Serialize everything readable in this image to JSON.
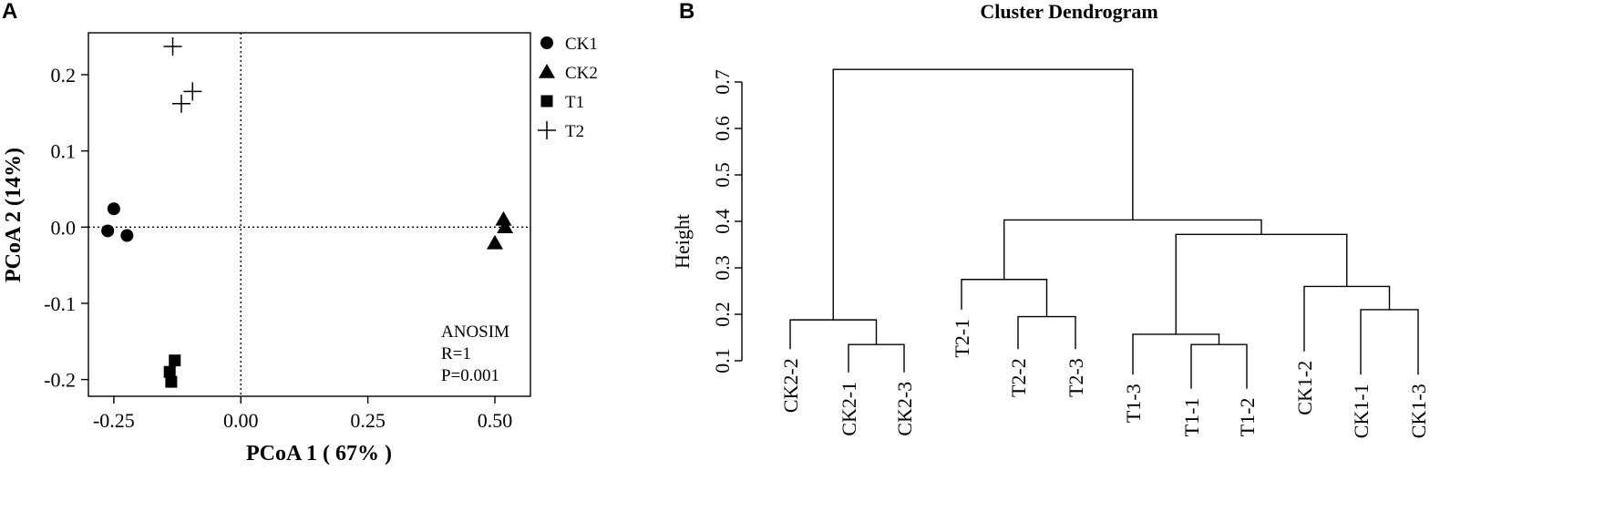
{
  "chart_data": [
    {
      "type": "scatter",
      "panel": "A",
      "title": "",
      "xlabel": "PCoA 1 ( 67% )",
      "ylabel": "PCoA 2 (14%)",
      "xlim": [
        -0.3,
        0.57
      ],
      "ylim": [
        -0.222,
        0.255
      ],
      "x_ticks": [
        -0.25,
        0.0,
        0.25,
        0.5
      ],
      "x_tick_labels": [
        "-0.25",
        "0.00",
        "0.25",
        "0.50"
      ],
      "y_ticks": [
        -0.2,
        -0.1,
        0.0,
        0.1,
        0.2
      ],
      "y_tick_labels": [
        "-0.2",
        "-0.1",
        "0.0",
        "0.1",
        "0.2"
      ],
      "grid": false,
      "reference_lines": {
        "x": 0,
        "y": 0
      },
      "legend_placement": "outside-right-top",
      "series": [
        {
          "name": "CK1",
          "marker": "circle",
          "points": [
            [
              -0.25,
              0.024
            ],
            [
              -0.262,
              -0.005
            ],
            [
              -0.224,
              -0.011
            ]
          ]
        },
        {
          "name": "CK2",
          "marker": "triangle",
          "points": [
            [
              0.517,
              0.01
            ],
            [
              0.52,
              0.0
            ],
            [
              0.5,
              -0.021
            ]
          ]
        },
        {
          "name": "T1",
          "marker": "square",
          "points": [
            [
              -0.13,
              -0.175
            ],
            [
              -0.14,
              -0.19
            ],
            [
              -0.137,
              -0.203
            ]
          ]
        },
        {
          "name": "T2",
          "marker": "plus",
          "points": [
            [
              -0.134,
              0.237
            ],
            [
              -0.095,
              0.178
            ],
            [
              -0.117,
              0.162
            ]
          ]
        }
      ],
      "annotation": [
        "ANOSIM",
        "R=1",
        "P=0.001"
      ]
    },
    {
      "type": "dendrogram",
      "panel": "B",
      "title": "Cluster Dendrogram",
      "ylabel": "Height",
      "ylim": [
        0.1,
        0.7
      ],
      "y_ticks": [
        0.1,
        0.2,
        0.3,
        0.4,
        0.5,
        0.6,
        0.7
      ],
      "y_tick_labels": [
        "0.1",
        "0.2",
        "0.3",
        "0.4",
        "0.5",
        "0.6",
        "0.7"
      ],
      "leaves": [
        "CK2-2",
        "CK2-1",
        "CK2-3",
        "T2-1",
        "T2-2",
        "T2-3",
        "T1-3",
        "T1-1",
        "T1-2",
        "CK1-2",
        "CK1-1",
        "CK1-3"
      ],
      "leaf_tip_heights": [
        0.125,
        0.075,
        0.075,
        0.21,
        0.125,
        0.125,
        0.07,
        0.04,
        0.04,
        0.12,
        0.07,
        0.07
      ],
      "merges": [
        {
          "left": "CK2-1",
          "right": "CK2-3",
          "height": 0.135
        },
        {
          "left": "CK2-2",
          "right": "(CK2-1,CK2-3)",
          "height": 0.188
        },
        {
          "left": "T2-2",
          "right": "T2-3",
          "height": 0.195
        },
        {
          "left": "T2-1",
          "right": "(T2-2,T2-3)",
          "height": 0.275
        },
        {
          "left": "T1-1",
          "right": "T1-2",
          "height": 0.135
        },
        {
          "left": "T1-3",
          "right": "(T1-1,T1-2)",
          "height": 0.157
        },
        {
          "left": "CK1-1",
          "right": "CK1-3",
          "height": 0.21
        },
        {
          "left": "CK1-2",
          "right": "(CK1-1,CK1-3)",
          "height": 0.26
        },
        {
          "left": "T1",
          "right": "CK1",
          "height": 0.372
        },
        {
          "left": "T2",
          "right": "(T1,CK1)",
          "height": 0.403
        },
        {
          "left": "CK2",
          "right": "(T2,T1,CK1)",
          "height": 0.727
        }
      ]
    }
  ]
}
